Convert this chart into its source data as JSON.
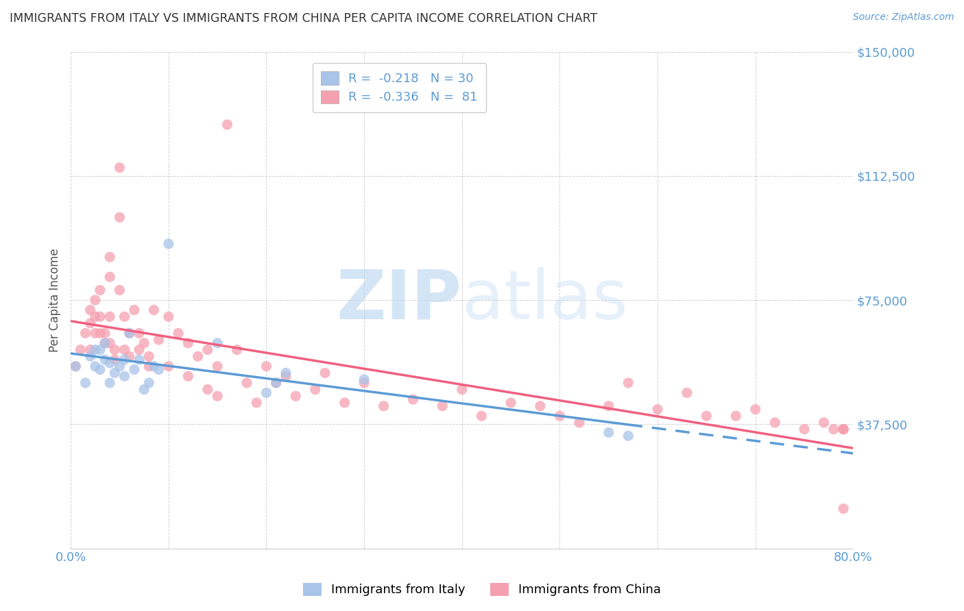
{
  "title": "IMMIGRANTS FROM ITALY VS IMMIGRANTS FROM CHINA PER CAPITA INCOME CORRELATION CHART",
  "source": "Source: ZipAtlas.com",
  "ylabel": "Per Capita Income",
  "xlim": [
    0.0,
    0.8
  ],
  "ylim": [
    0,
    150000
  ],
  "yticks": [
    0,
    37500,
    75000,
    112500,
    150000
  ],
  "xticks": [
    0.0,
    0.1,
    0.2,
    0.3,
    0.4,
    0.5,
    0.6,
    0.7,
    0.8
  ],
  "italy_R": -0.218,
  "italy_N": 30,
  "china_R": -0.336,
  "china_N": 81,
  "italy_color": "#a8c4e8",
  "china_color": "#f5a0b0",
  "italy_line_color": "#5b9bd5",
  "china_line_color": "#f06080",
  "grid_color": "#cccccc",
  "axis_color": "#5b9bd5",
  "watermark_color": "#d0e8f5",
  "italy_x": [
    0.005,
    0.015,
    0.02,
    0.025,
    0.025,
    0.03,
    0.03,
    0.035,
    0.035,
    0.04,
    0.04,
    0.045,
    0.05,
    0.055,
    0.055,
    0.06,
    0.065,
    0.07,
    0.075,
    0.08,
    0.085,
    0.09,
    0.1,
    0.15,
    0.2,
    0.21,
    0.22,
    0.3,
    0.55,
    0.57
  ],
  "italy_y": [
    55000,
    50000,
    58000,
    55000,
    60000,
    54000,
    60000,
    57000,
    62000,
    50000,
    56000,
    53000,
    55000,
    52000,
    57000,
    65000,
    54000,
    57000,
    48000,
    50000,
    55000,
    54000,
    92000,
    62000,
    47000,
    50000,
    53000,
    51000,
    35000,
    34000
  ],
  "china_x": [
    0.005,
    0.01,
    0.015,
    0.02,
    0.02,
    0.02,
    0.025,
    0.025,
    0.025,
    0.03,
    0.03,
    0.03,
    0.035,
    0.035,
    0.04,
    0.04,
    0.04,
    0.04,
    0.045,
    0.045,
    0.05,
    0.05,
    0.05,
    0.055,
    0.055,
    0.06,
    0.06,
    0.065,
    0.07,
    0.07,
    0.075,
    0.08,
    0.08,
    0.085,
    0.09,
    0.1,
    0.1,
    0.11,
    0.12,
    0.12,
    0.13,
    0.14,
    0.14,
    0.15,
    0.15,
    0.16,
    0.17,
    0.18,
    0.19,
    0.2,
    0.21,
    0.22,
    0.23,
    0.25,
    0.26,
    0.28,
    0.3,
    0.32,
    0.35,
    0.38,
    0.4,
    0.42,
    0.45,
    0.48,
    0.5,
    0.52,
    0.55,
    0.57,
    0.6,
    0.63,
    0.65,
    0.68,
    0.7,
    0.72,
    0.75,
    0.77,
    0.78,
    0.79,
    0.79,
    0.79,
    0.79
  ],
  "china_y": [
    55000,
    60000,
    65000,
    68000,
    72000,
    60000,
    65000,
    75000,
    70000,
    65000,
    78000,
    70000,
    65000,
    62000,
    88000,
    82000,
    70000,
    62000,
    60000,
    57000,
    115000,
    100000,
    78000,
    70000,
    60000,
    65000,
    58000,
    72000,
    65000,
    60000,
    62000,
    58000,
    55000,
    72000,
    63000,
    70000,
    55000,
    65000,
    62000,
    52000,
    58000,
    60000,
    48000,
    55000,
    46000,
    128000,
    60000,
    50000,
    44000,
    55000,
    50000,
    52000,
    46000,
    48000,
    53000,
    44000,
    50000,
    43000,
    45000,
    43000,
    48000,
    40000,
    44000,
    43000,
    40000,
    38000,
    43000,
    50000,
    42000,
    47000,
    40000,
    40000,
    42000,
    38000,
    36000,
    38000,
    36000,
    36000,
    36000,
    36000,
    12000
  ]
}
